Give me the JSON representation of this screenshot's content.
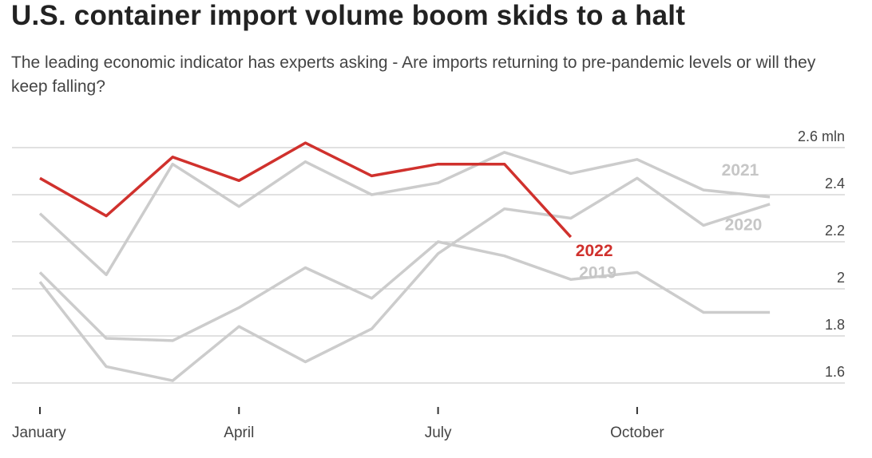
{
  "chart_data": {
    "type": "line",
    "title": "U.S. container import volume boom skids to a halt",
    "subtitle": "The leading economic indicator has experts asking - Are imports returning to pre-pandemic levels or will they keep falling?",
    "categories": [
      "January",
      null,
      null,
      "April",
      null,
      null,
      "July",
      null,
      null,
      "October",
      null,
      null
    ],
    "ylim": [
      1.6,
      2.6
    ],
    "yticks": [
      1.6,
      1.8,
      2.0,
      2.2,
      2.4,
      {
        "value": 2.6,
        "label": "2.6 mln"
      }
    ],
    "grid": true,
    "series": [
      {
        "name": "2019",
        "color": "#cccccc",
        "values": [
          2.07,
          1.79,
          1.78,
          1.92,
          2.09,
          1.96,
          2.2,
          2.14,
          2.04,
          2.07,
          1.9,
          1.9
        ]
      },
      {
        "name": "2020",
        "color": "#cccccc",
        "values": [
          2.03,
          1.67,
          1.61,
          1.84,
          1.69,
          1.83,
          2.15,
          2.34,
          2.3,
          2.47,
          2.27,
          2.36
        ]
      },
      {
        "name": "2021",
        "color": "#cccccc",
        "values": [
          2.32,
          2.06,
          2.53,
          2.35,
          2.54,
          2.4,
          2.45,
          2.58,
          2.49,
          2.55,
          2.42,
          2.39
        ]
      },
      {
        "name": "2022",
        "color": "#d0312d",
        "values": [
          2.47,
          2.31,
          2.56,
          2.46,
          2.62,
          2.48,
          2.53,
          2.53,
          2.22,
          null,
          null,
          null
        ]
      }
    ]
  }
}
